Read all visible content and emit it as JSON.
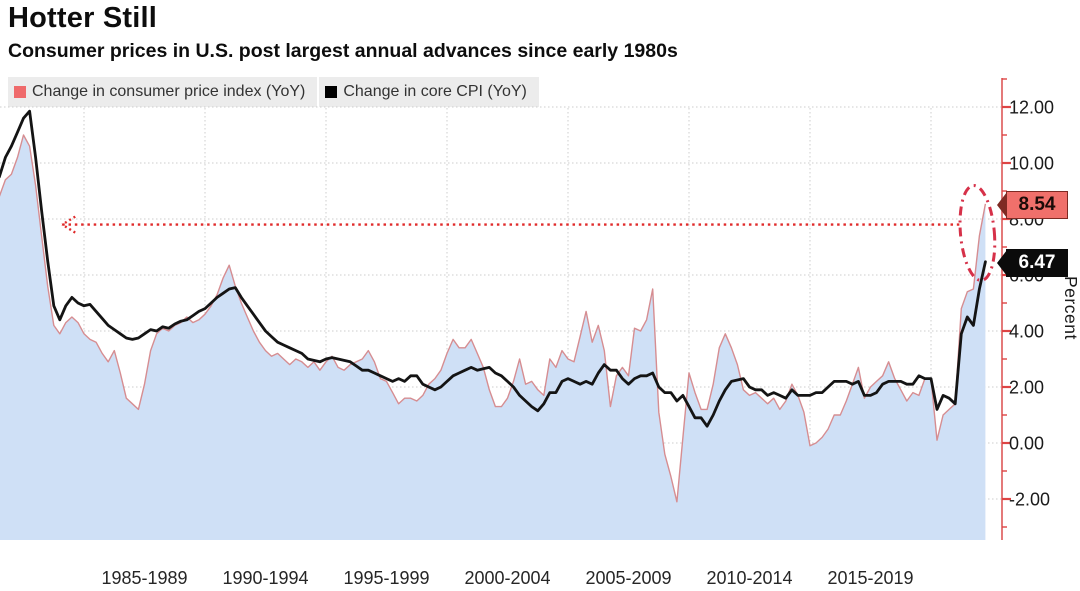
{
  "header": {
    "title": "Hotter Still",
    "subtitle": "Consumer prices in U.S. post largest annual advances since early 1980s"
  },
  "legend": {
    "items": [
      {
        "label": "Change in consumer price index (YoY)",
        "color": "#ef6a6b"
      },
      {
        "label": "Change in core CPI (YoY)",
        "color": "#000000"
      }
    ],
    "background": "#ececec"
  },
  "chart_data": {
    "type": "area",
    "x_unit": "decimal_year",
    "x_start": 1981.5,
    "x_step": 0.25,
    "x_count": 164,
    "series": [
      {
        "name": "Change in consumer price index (YoY)",
        "kind": "area+line",
        "line_color": "#d68d91",
        "fill_color": "#cfe0f6",
        "values": [
          8.8,
          9.4,
          9.6,
          10.2,
          11.0,
          10.6,
          9.2,
          7.4,
          5.6,
          4.2,
          3.9,
          4.3,
          4.5,
          4.3,
          3.9,
          3.7,
          3.6,
          3.2,
          2.9,
          3.3,
          2.5,
          1.6,
          1.4,
          1.2,
          2.1,
          3.3,
          3.9,
          4.1,
          4.0,
          4.2,
          4.3,
          4.5,
          4.3,
          4.4,
          4.6,
          4.9,
          5.3,
          5.9,
          6.35,
          5.6,
          5.0,
          4.5,
          4.0,
          3.6,
          3.3,
          3.1,
          3.2,
          3.0,
          2.8,
          3.0,
          2.9,
          2.7,
          2.9,
          2.6,
          2.9,
          3.1,
          2.7,
          2.6,
          2.8,
          2.9,
          3.0,
          3.3,
          2.9,
          2.3,
          2.2,
          1.8,
          1.4,
          1.6,
          1.6,
          1.5,
          1.7,
          2.1,
          2.3,
          2.6,
          3.2,
          3.7,
          3.4,
          3.4,
          3.7,
          3.2,
          2.7,
          1.9,
          1.3,
          1.3,
          1.6,
          2.2,
          3.0,
          2.1,
          2.2,
          1.9,
          1.7,
          3.0,
          2.7,
          3.3,
          3.0,
          2.9,
          3.8,
          4.7,
          3.6,
          4.2,
          3.3,
          1.3,
          2.4,
          2.7,
          2.4,
          4.1,
          4.0,
          4.4,
          5.5,
          1.1,
          -0.4,
          -1.2,
          -2.1,
          0.2,
          2.5,
          1.8,
          1.2,
          1.2,
          2.1,
          3.4,
          3.9,
          3.4,
          2.8,
          1.9,
          1.7,
          1.8,
          1.6,
          1.4,
          1.6,
          1.2,
          1.5,
          2.1,
          1.7,
          1.1,
          -0.1,
          0.0,
          0.2,
          0.5,
          1.0,
          1.0,
          1.5,
          2.1,
          2.7,
          1.6,
          2.0,
          2.2,
          2.4,
          2.9,
          2.3,
          1.9,
          1.5,
          1.8,
          1.7,
          2.3,
          2.3,
          0.1,
          1.0,
          1.2,
          1.4,
          4.8,
          5.4,
          5.5,
          7.4,
          8.54
        ]
      },
      {
        "name": "Change in core CPI (YoY)",
        "kind": "line",
        "line_color": "#141414",
        "values": [
          9.5,
          10.2,
          10.6,
          11.1,
          11.6,
          11.85,
          10.2,
          8.3,
          6.5,
          4.9,
          4.4,
          4.9,
          5.2,
          5.0,
          4.9,
          4.95,
          4.7,
          4.45,
          4.2,
          4.05,
          3.9,
          3.75,
          3.7,
          3.75,
          3.9,
          4.05,
          4.0,
          4.15,
          4.1,
          4.25,
          4.35,
          4.4,
          4.55,
          4.7,
          4.8,
          5.0,
          5.2,
          5.35,
          5.5,
          5.55,
          5.2,
          4.9,
          4.6,
          4.3,
          4.0,
          3.8,
          3.6,
          3.5,
          3.4,
          3.3,
          3.2,
          3.0,
          2.95,
          2.9,
          3.0,
          3.05,
          3.0,
          2.95,
          2.9,
          2.75,
          2.6,
          2.6,
          2.5,
          2.4,
          2.3,
          2.2,
          2.3,
          2.2,
          2.4,
          2.4,
          2.1,
          2.0,
          1.9,
          2.0,
          2.2,
          2.4,
          2.5,
          2.6,
          2.7,
          2.6,
          2.65,
          2.7,
          2.5,
          2.4,
          2.2,
          2.0,
          1.7,
          1.5,
          1.3,
          1.15,
          1.4,
          1.8,
          1.8,
          2.2,
          2.3,
          2.2,
          2.1,
          2.2,
          2.1,
          2.5,
          2.8,
          2.6,
          2.6,
          2.3,
          2.1,
          2.3,
          2.4,
          2.4,
          2.5,
          2.0,
          1.8,
          1.8,
          1.5,
          1.7,
          1.3,
          0.9,
          0.9,
          0.6,
          1.0,
          1.5,
          1.9,
          2.2,
          2.25,
          2.3,
          2.0,
          1.9,
          1.9,
          1.7,
          1.8,
          1.7,
          1.6,
          1.9,
          1.7,
          1.7,
          1.7,
          1.8,
          1.8,
          2.0,
          2.2,
          2.2,
          2.2,
          2.1,
          2.2,
          1.7,
          1.7,
          1.8,
          2.1,
          2.2,
          2.2,
          2.2,
          2.1,
          2.1,
          2.4,
          2.3,
          2.3,
          1.2,
          1.7,
          1.6,
          1.4,
          3.9,
          4.5,
          4.2,
          5.5,
          6.47
        ]
      }
    ],
    "end_labels": [
      {
        "text": "8.54",
        "value": 8.54,
        "bg": "#f0706b",
        "fg": "#1c0b08",
        "border": "#7e2a23"
      },
      {
        "text": "6.47",
        "value": 6.47,
        "bg": "#0b0b0b",
        "fg": "#ffffff",
        "border": "#0b0b0b"
      }
    ],
    "y_axis": {
      "side": "right",
      "label": "Percent",
      "ticks": [
        "12.00",
        "10.00",
        "8.00",
        "6.00",
        "4.00",
        "2.00",
        "0.00",
        "-2.00"
      ],
      "tick_values": [
        12,
        10,
        8,
        6,
        4,
        2,
        0,
        -2
      ],
      "minor_tick_values": [
        13,
        11,
        9,
        7,
        5,
        3,
        1,
        -1,
        -3
      ],
      "range": [
        -3.45,
        13.0
      ],
      "axis_color": "#dd5858",
      "tick_color": "#dd4444"
    },
    "x_axis": {
      "bin_labels": [
        "1985-1989",
        "1990-1994",
        "1995-1999",
        "2000-2004",
        "2005-2009",
        "2010-2014",
        "2015-2019"
      ],
      "gridline_years": [
        1985,
        1990,
        1995,
        2000,
        2005,
        2010,
        2015,
        2020
      ],
      "range": [
        1981.5,
        2022.25
      ],
      "grid_color": "#cccccc"
    },
    "annotations": {
      "arrow_line": {
        "value": 7.8,
        "x_from_year": 1984.1,
        "x_to_year": 2021.3,
        "color": "#e02b2b",
        "style": "dotted",
        "arrow": "left"
      },
      "ellipse_highlight": {
        "x_year": 2022.0,
        "y_value": 7.5,
        "rx_years": 0.7,
        "ry_value": 1.7,
        "color": "#d63149",
        "style": "dash-dot"
      }
    }
  }
}
